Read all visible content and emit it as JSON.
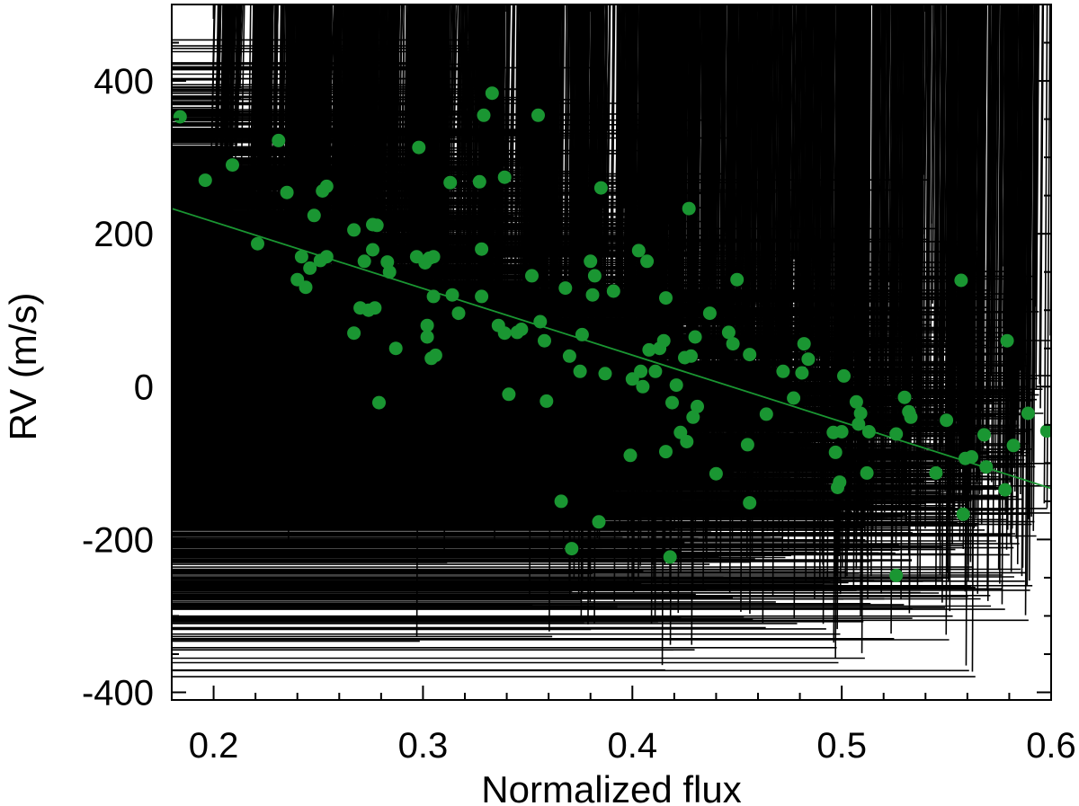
{
  "chart_data": {
    "type": "scatter",
    "xlabel": "Normalized flux",
    "ylabel": "RV (m/s)",
    "xlim": [
      0.18,
      0.6
    ],
    "ylim": [
      -410,
      500
    ],
    "x_ticks": [
      0.2,
      0.3,
      0.4,
      0.5,
      0.6
    ],
    "x_tick_labels": [
      "0.2",
      "0.3",
      "0.4",
      "0.5",
      "0.6"
    ],
    "y_ticks": [
      -400,
      -200,
      0,
      200,
      400
    ],
    "y_tick_labels": [
      "-400",
      "-200",
      "0",
      "200",
      "400"
    ],
    "grid": false,
    "colors": {
      "background_points": "#000000",
      "binned_points": "#1a9632",
      "fit_line": "#1a9632"
    },
    "series": [
      {
        "marker": "asterisk",
        "color": "#000000",
        "clusters": [
          {
            "x": 0.208,
            "y": 300,
            "sx": 0.004,
            "sy": 60,
            "n": 60
          },
          {
            "x": 0.225,
            "y": 200,
            "sx": 0.004,
            "sy": 70,
            "n": 70
          },
          {
            "x": 0.248,
            "y": 170,
            "sx": 0.007,
            "sy": 90,
            "n": 220
          },
          {
            "x": 0.273,
            "y": 130,
            "sx": 0.008,
            "sy": 110,
            "n": 230
          },
          {
            "x": 0.302,
            "y": 130,
            "sx": 0.007,
            "sy": 120,
            "n": 210
          },
          {
            "x": 0.33,
            "y": 180,
            "sx": 0.006,
            "sy": 150,
            "n": 180
          },
          {
            "x": 0.355,
            "y": 120,
            "sx": 0.006,
            "sy": 130,
            "n": 140
          },
          {
            "x": 0.378,
            "y": 30,
            "sx": 0.008,
            "sy": 150,
            "n": 180
          },
          {
            "x": 0.405,
            "y": 30,
            "sx": 0.007,
            "sy": 130,
            "n": 200
          },
          {
            "x": 0.425,
            "y": 0,
            "sx": 0.008,
            "sy": 140,
            "n": 210
          },
          {
            "x": 0.452,
            "y": -20,
            "sx": 0.008,
            "sy": 120,
            "n": 160
          },
          {
            "x": 0.478,
            "y": -20,
            "sx": 0.008,
            "sy": 100,
            "n": 130
          },
          {
            "x": 0.503,
            "y": -70,
            "sx": 0.007,
            "sy": 110,
            "n": 190
          },
          {
            "x": 0.53,
            "y": -50,
            "sx": 0.008,
            "sy": 110,
            "n": 170
          },
          {
            "x": 0.56,
            "y": -80,
            "sx": 0.01,
            "sy": 120,
            "n": 190
          },
          {
            "x": 0.585,
            "y": -60,
            "sx": 0.008,
            "sy": 100,
            "n": 110
          }
        ]
      },
      {
        "marker": "filled-circle",
        "color": "#1a9632",
        "points": [
          [
            0.184,
            353
          ],
          [
            0.196,
            270
          ],
          [
            0.209,
            290
          ],
          [
            0.221,
            187
          ],
          [
            0.231,
            322
          ],
          [
            0.235,
            254
          ],
          [
            0.24,
            140
          ],
          [
            0.242,
            170
          ],
          [
            0.244,
            130
          ],
          [
            0.246,
            155
          ],
          [
            0.248,
            224
          ],
          [
            0.251,
            165
          ],
          [
            0.252,
            256
          ],
          [
            0.254,
            262
          ],
          [
            0.254,
            170
          ],
          [
            0.267,
            205
          ],
          [
            0.267,
            70
          ],
          [
            0.27,
            103
          ],
          [
            0.272,
            164
          ],
          [
            0.274,
            100
          ],
          [
            0.276,
            212
          ],
          [
            0.276,
            179
          ],
          [
            0.277,
            103
          ],
          [
            0.278,
            211
          ],
          [
            0.279,
            -21
          ],
          [
            0.283,
            163
          ],
          [
            0.284,
            150
          ],
          [
            0.287,
            50
          ],
          [
            0.297,
            170
          ],
          [
            0.298,
            313
          ],
          [
            0.301,
            162
          ],
          [
            0.302,
            80
          ],
          [
            0.302,
            65
          ],
          [
            0.303,
            168
          ],
          [
            0.304,
            37
          ],
          [
            0.305,
            118
          ],
          [
            0.305,
            170
          ],
          [
            0.306,
            41
          ],
          [
            0.313,
            267
          ],
          [
            0.314,
            120
          ],
          [
            0.317,
            96
          ],
          [
            0.327,
            268
          ],
          [
            0.328,
            180
          ],
          [
            0.328,
            118
          ],
          [
            0.329,
            355
          ],
          [
            0.333,
            384
          ],
          [
            0.336,
            80
          ],
          [
            0.339,
            274
          ],
          [
            0.339,
            70
          ],
          [
            0.341,
            -10
          ],
          [
            0.345,
            71
          ],
          [
            0.347,
            75
          ],
          [
            0.352,
            145
          ],
          [
            0.355,
            355
          ],
          [
            0.356,
            85
          ],
          [
            0.358,
            60
          ],
          [
            0.359,
            -19
          ],
          [
            0.366,
            -150
          ],
          [
            0.368,
            129
          ],
          [
            0.37,
            40
          ],
          [
            0.371,
            -212
          ],
          [
            0.375,
            20
          ],
          [
            0.376,
            68
          ],
          [
            0.38,
            164
          ],
          [
            0.381,
            120
          ],
          [
            0.382,
            145
          ],
          [
            0.384,
            -177
          ],
          [
            0.385,
            260
          ],
          [
            0.387,
            17
          ],
          [
            0.391,
            125
          ],
          [
            0.399,
            -90
          ],
          [
            0.4,
            10
          ],
          [
            0.403,
            178
          ],
          [
            0.404,
            20
          ],
          [
            0.405,
            0
          ],
          [
            0.407,
            164
          ],
          [
            0.408,
            48
          ],
          [
            0.411,
            20
          ],
          [
            0.413,
            50
          ],
          [
            0.415,
            60
          ],
          [
            0.416,
            -85
          ],
          [
            0.416,
            116
          ],
          [
            0.418,
            -223
          ],
          [
            0.419,
            -21
          ],
          [
            0.421,
            2
          ],
          [
            0.423,
            -60
          ],
          [
            0.425,
            38
          ],
          [
            0.426,
            -72
          ],
          [
            0.427,
            233
          ],
          [
            0.428,
            40
          ],
          [
            0.429,
            -40
          ],
          [
            0.43,
            65
          ],
          [
            0.431,
            -26
          ],
          [
            0.437,
            96
          ],
          [
            0.44,
            -114
          ],
          [
            0.446,
            71
          ],
          [
            0.448,
            56
          ],
          [
            0.45,
            140
          ],
          [
            0.455,
            -76
          ],
          [
            0.456,
            42
          ],
          [
            0.456,
            -152
          ],
          [
            0.464,
            -36
          ],
          [
            0.472,
            20
          ],
          [
            0.477,
            -15
          ],
          [
            0.481,
            18
          ],
          [
            0.482,
            56
          ],
          [
            0.484,
            36
          ],
          [
            0.496,
            -60
          ],
          [
            0.497,
            -86
          ],
          [
            0.498,
            -132
          ],
          [
            0.499,
            -125
          ],
          [
            0.5,
            -59
          ],
          [
            0.501,
            14
          ],
          [
            0.507,
            -20
          ],
          [
            0.508,
            -49
          ],
          [
            0.509,
            -35
          ],
          [
            0.512,
            -113
          ],
          [
            0.513,
            -59
          ],
          [
            0.526,
            -62
          ],
          [
            0.526,
            -247
          ],
          [
            0.53,
            -14
          ],
          [
            0.532,
            -33
          ],
          [
            0.533,
            -40
          ],
          [
            0.545,
            -113
          ],
          [
            0.55,
            -44
          ],
          [
            0.557,
            139
          ],
          [
            0.558,
            -167
          ],
          [
            0.559,
            -94
          ],
          [
            0.562,
            -92
          ],
          [
            0.568,
            -63
          ],
          [
            0.569,
            -105
          ],
          [
            0.578,
            -135
          ],
          [
            0.579,
            60
          ],
          [
            0.582,
            -77
          ],
          [
            0.589,
            -35
          ],
          [
            0.598,
            -58
          ]
        ]
      }
    ],
    "fit_line": {
      "slope": -872,
      "intercept": 390
    }
  }
}
